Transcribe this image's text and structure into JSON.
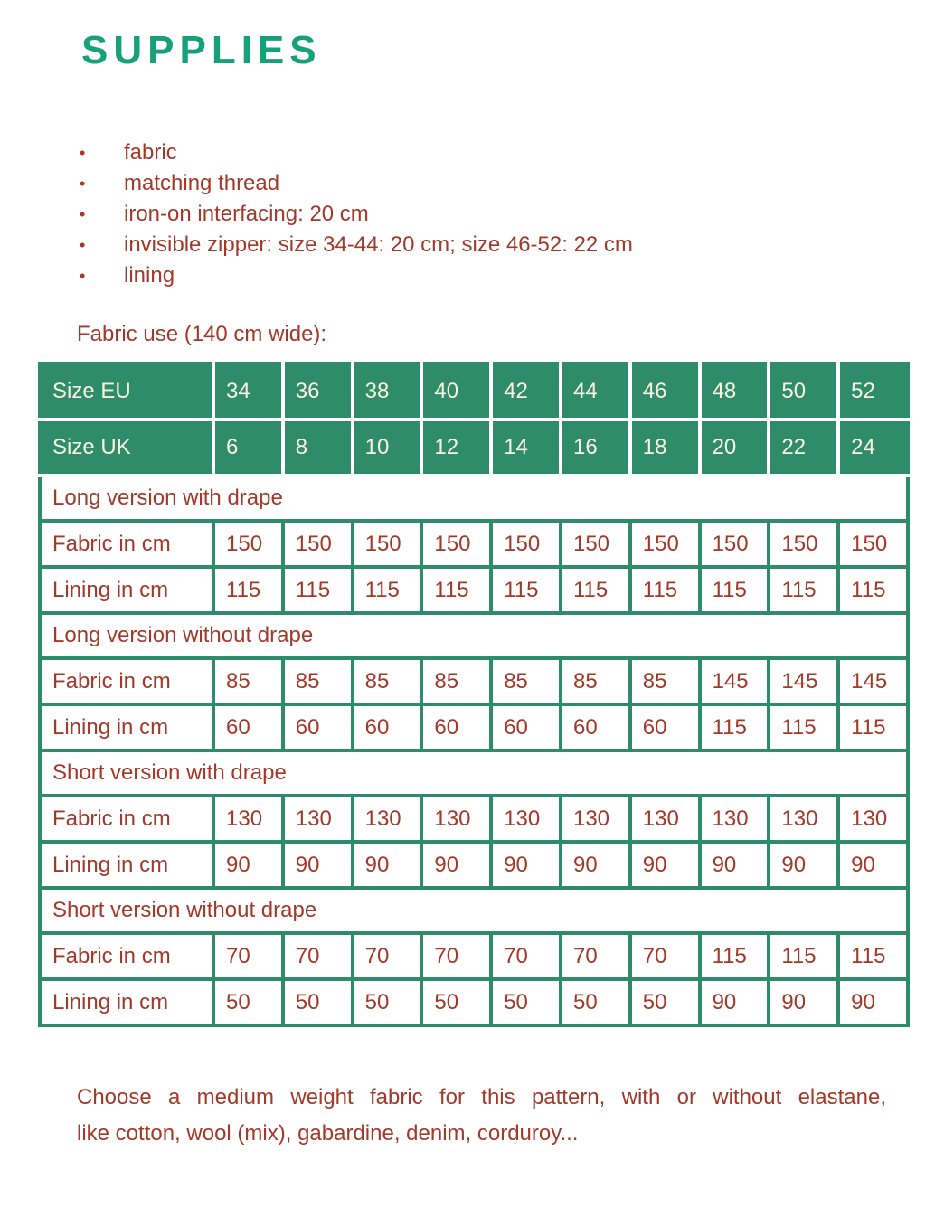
{
  "title": "SUPPLIES",
  "supplies": {
    "bullet_glyph": "•",
    "items": [
      "fabric",
      "matching thread",
      "iron-on interfacing: 20 cm",
      "invisible zipper: size 34-44: 20 cm; size 46-52: 22 cm",
      "lining"
    ]
  },
  "fabric_use_heading": "Fabric use (140 cm wide):",
  "table": {
    "size_rows": [
      {
        "label": "Size EU",
        "values": [
          "34",
          "36",
          "38",
          "40",
          "42",
          "44",
          "46",
          "48",
          "50",
          "52"
        ]
      },
      {
        "label": "Size UK",
        "values": [
          "6",
          "8",
          "10",
          "12",
          "14",
          "16",
          "18",
          "20",
          "22",
          "24"
        ]
      }
    ],
    "sections": [
      {
        "title": "Long version with drape",
        "rows": [
          {
            "label": "Fabric in cm",
            "values": [
              "150",
              "150",
              "150",
              "150",
              "150",
              "150",
              "150",
              "150",
              "150",
              "150"
            ]
          },
          {
            "label": "Lining in cm",
            "values": [
              "115",
              "115",
              "115",
              "115",
              "115",
              "115",
              "115",
              "115",
              "115",
              "115"
            ]
          }
        ]
      },
      {
        "title": "Long version without drape",
        "rows": [
          {
            "label": "Fabric in cm",
            "values": [
              "85",
              "85",
              "85",
              "85",
              "85",
              "85",
              "85",
              "145",
              "145",
              "145"
            ]
          },
          {
            "label": "Lining in cm",
            "values": [
              "60",
              "60",
              "60",
              "60",
              "60",
              "60",
              "60",
              "115",
              "115",
              "115"
            ]
          }
        ]
      },
      {
        "title": "Short version with drape",
        "rows": [
          {
            "label": "Fabric in cm",
            "values": [
              "130",
              "130",
              "130",
              "130",
              "130",
              "130",
              "130",
              "130",
              "130",
              "130"
            ]
          },
          {
            "label": "Lining in cm",
            "values": [
              "90",
              "90",
              "90",
              "90",
              "90",
              "90",
              "90",
              "90",
              "90",
              "90"
            ]
          }
        ]
      },
      {
        "title": "Short version without drape",
        "rows": [
          {
            "label": "Fabric in cm",
            "values": [
              "70",
              "70",
              "70",
              "70",
              "70",
              "70",
              "70",
              "115",
              "115",
              "115"
            ]
          },
          {
            "label": "Lining in cm",
            "values": [
              "50",
              "50",
              "50",
              "50",
              "50",
              "50",
              "50",
              "90",
              "90",
              "90"
            ]
          }
        ]
      }
    ]
  },
  "note": {
    "lines": [
      "Choose a medium weight fabric for this pattern, with or without elastane,",
      "like cotton, wool (mix), gabardine, denim, corduroy..."
    ]
  },
  "colors": {
    "title_green": "#17a17a",
    "table_green": "#2e8c6b",
    "text_red": "#a23a2b",
    "table_header_text": "#f8f2de"
  }
}
